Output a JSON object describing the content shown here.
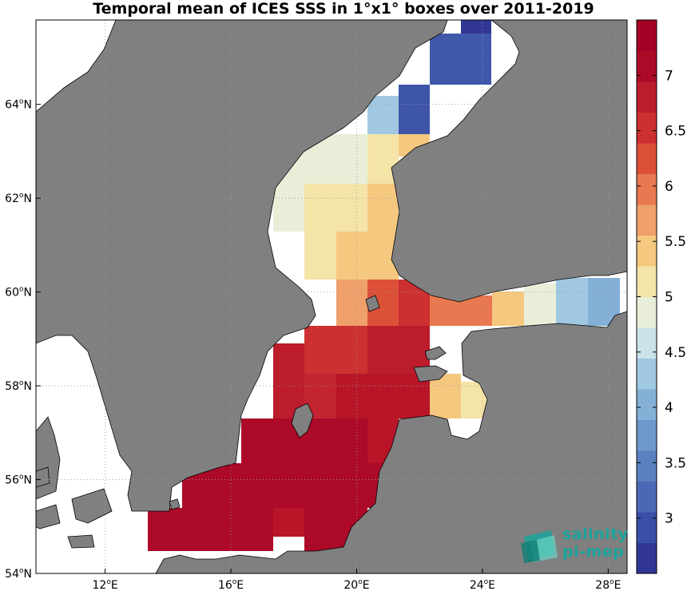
{
  "title": "Temporal mean of ICES SSS in 1°x1° boxes over 2011-2019",
  "map": {
    "lon_range": [
      9.8,
      28.6
    ],
    "lat_range": [
      54.0,
      65.8
    ],
    "x_ticks": [
      {
        "deg": "12",
        "hemi": "E",
        "lon": 12
      },
      {
        "deg": "16",
        "hemi": "E",
        "lon": 16
      },
      {
        "deg": "20",
        "hemi": "E",
        "lon": 20
      },
      {
        "deg": "24",
        "hemi": "E",
        "lon": 24
      },
      {
        "deg": "28",
        "hemi": "E",
        "lon": 28
      }
    ],
    "y_ticks": [
      {
        "deg": "54",
        "hemi": "N",
        "lat": 54
      },
      {
        "deg": "56",
        "hemi": "N",
        "lat": 56
      },
      {
        "deg": "58",
        "hemi": "N",
        "lat": 58
      },
      {
        "deg": "60",
        "hemi": "N",
        "lat": 60
      },
      {
        "deg": "62",
        "hemi": "N",
        "lat": 62
      },
      {
        "deg": "64",
        "hemi": "N",
        "lat": 64
      }
    ],
    "land_color": "#808080",
    "sea_color": "#ffffff",
    "grid": "dotted"
  },
  "colorbar": {
    "min": 2.5,
    "max": 7.5,
    "tick_labels": [
      "3",
      "3.5",
      "4",
      "4.5",
      "5",
      "5.5",
      "6",
      "6.5",
      "7"
    ],
    "tick_values": [
      3,
      3.5,
      4,
      4.5,
      5,
      5.5,
      6,
      6.5,
      7
    ],
    "colors": [
      "#313695",
      "#3b4fa8",
      "#4a68b4",
      "#5a80c0",
      "#6d98cc",
      "#84b0d8",
      "#a0c8e2",
      "#cae3ea",
      "#e8eed8",
      "#f5e4a8",
      "#f5c880",
      "#f0a06a",
      "#e87850",
      "#dc5038",
      "#cc3030",
      "#bc1c2c",
      "#ac0a28",
      "#a50026"
    ]
  },
  "chart_data": {
    "type": "heatmap",
    "title": "Temporal mean of ICES SSS in 1°x1° boxes over 2011-2019",
    "cells": [
      {
        "lon": 23.5,
        "lat": 65.5,
        "value": 2.8
      },
      {
        "lon": 23.5,
        "lat": 65.0,
        "value": 3.1
      },
      {
        "lon": 24.5,
        "lat": 65.0,
        "value": 3.1
      },
      {
        "lon": 22.5,
        "lat": 64.5,
        "value": 3.2
      },
      {
        "lon": 21.5,
        "lat": 64.2,
        "value": 4.5
      },
      {
        "lon": 22.5,
        "lat": 64.2,
        "value": 3.2
      },
      {
        "lon": 19.0,
        "lat": 63.0,
        "value": 5.0
      },
      {
        "lon": 21.5,
        "lat": 63.0,
        "value": 5.5
      },
      {
        "lon": 22.5,
        "lat": 63.0,
        "value": 5.8
      },
      {
        "lon": 17.5,
        "lat": 62.0,
        "value": 5.0
      },
      {
        "lon": 19.0,
        "lat": 62.0,
        "value": 5.5
      },
      {
        "lon": 21.5,
        "lat": 62.0,
        "value": 5.8
      },
      {
        "lon": 20.5,
        "lat": 61.0,
        "value": 5.8
      },
      {
        "lon": 19.0,
        "lat": 61.0,
        "value": 5.5
      },
      {
        "lon": 19.5,
        "lat": 60.0,
        "value": 6.0
      },
      {
        "lon": 20.5,
        "lat": 60.0,
        "value": 6.3
      },
      {
        "lon": 21.5,
        "lat": 60.0,
        "value": 6.6
      },
      {
        "lon": 23.0,
        "lat": 59.8,
        "value": 6.2
      },
      {
        "lon": 25.0,
        "lat": 59.8,
        "value": 5.6
      },
      {
        "lon": 26.0,
        "lat": 59.9,
        "value": 5.0
      },
      {
        "lon": 27.0,
        "lat": 59.9,
        "value": 4.4
      },
      {
        "lon": 28.0,
        "lat": 59.9,
        "value": 4.2
      },
      {
        "lon": 18.0,
        "lat": 59.0,
        "value": 6.8
      },
      {
        "lon": 20.5,
        "lat": 59.0,
        "value": 6.9
      },
      {
        "lon": 18.0,
        "lat": 58.0,
        "value": 7.0
      },
      {
        "lon": 20.5,
        "lat": 58.0,
        "value": 7.2
      },
      {
        "lon": 23.0,
        "lat": 57.8,
        "value": 5.8
      },
      {
        "lon": 23.5,
        "lat": 57.5,
        "value": 5.5
      },
      {
        "lon": 17.0,
        "lat": 56.0,
        "value": 7.4
      },
      {
        "lon": 20.0,
        "lat": 56.0,
        "value": 7.4
      },
      {
        "lon": 15.0,
        "lat": 55.0,
        "value": 7.4
      },
      {
        "lon": 18.5,
        "lat": 55.0,
        "value": 7.3
      }
    ],
    "colorbar_ticks": [
      3,
      3.5,
      4,
      4.5,
      5,
      5.5,
      6,
      6.5,
      7
    ]
  },
  "logo": {
    "line1": "salinity",
    "line2": "pi-mep"
  }
}
